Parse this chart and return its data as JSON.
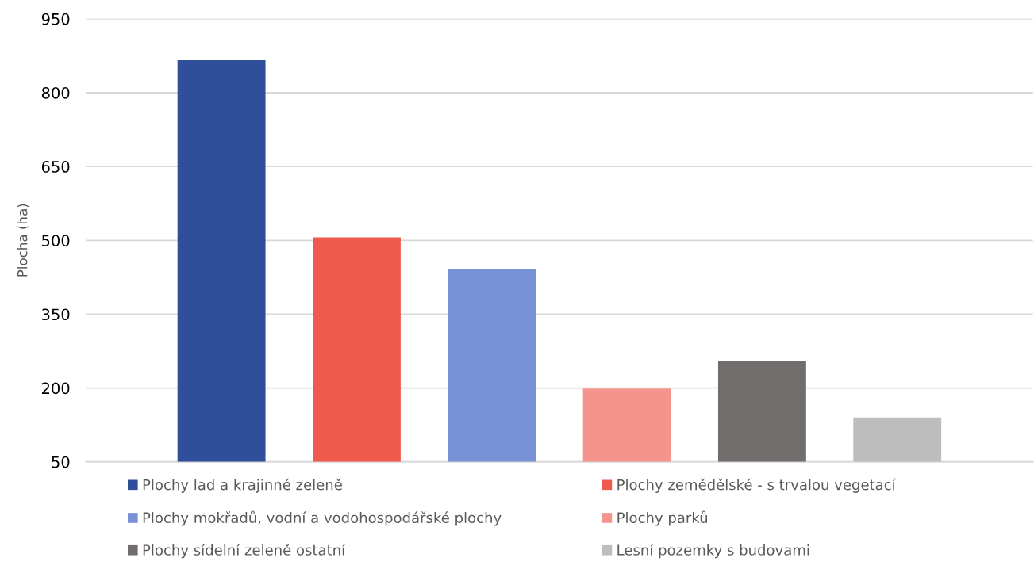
{
  "chart_data": {
    "type": "bar",
    "ylabel": "Plocha (ha)",
    "categories": [
      null
    ],
    "series": [
      {
        "name": "Plochy lad a krajinné zeleně",
        "color": "#2f4f9b",
        "values": [
          866
        ]
      },
      {
        "name": "Plochy zemědělské - s trvalou vegetací",
        "color": "#ee5a4e",
        "values": [
          506
        ]
      },
      {
        "name": "Plochy mokřadů, vodní a vodohospodářské plochy",
        "color": "#7890d6",
        "values": [
          442
        ]
      },
      {
        "name": "Plochy parků",
        "color": "#f4948c",
        "values": [
          199
        ]
      },
      {
        "name": "Plochy sídelní zeleně ostatní",
        "color": "#716d6c",
        "values": [
          254
        ]
      },
      {
        "name": "Lesní pozemky s budovami",
        "color": "#bdbdbd",
        "values": [
          140
        ]
      }
    ],
    "ylim": [
      50,
      950
    ],
    "yticks": [
      50,
      200,
      350,
      500,
      650,
      800,
      950
    ],
    "grid": "y",
    "legend": "bottom"
  }
}
